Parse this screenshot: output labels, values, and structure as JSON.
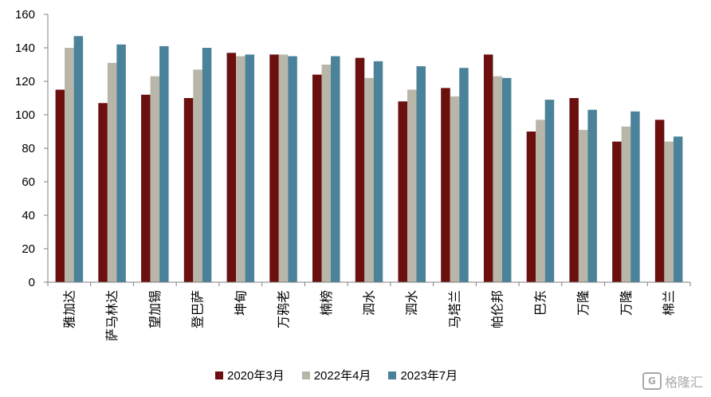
{
  "chart_data": {
    "type": "bar",
    "categories": [
      "雅加达",
      "萨马林达",
      "望加锡",
      "登巴萨",
      "坤甸",
      "万鸦老",
      "楠榜",
      "泗水",
      "泗水",
      "马塔兰",
      "帕伦邦",
      "巴东",
      "万隆",
      "万隆",
      "棉兰"
    ],
    "series": [
      {
        "name": "2020年3月",
        "color": "#6b0f0f",
        "values": [
          115,
          107,
          112,
          110,
          137,
          136,
          124,
          134,
          108,
          116,
          136,
          90,
          110,
          84,
          97
        ]
      },
      {
        "name": "2022年4月",
        "color": "#b8b6a8",
        "values": [
          140,
          131,
          123,
          127,
          135,
          136,
          130,
          122,
          115,
          111,
          123,
          97,
          91,
          93,
          84
        ]
      },
      {
        "name": "2023年7月",
        "color": "#4a8299",
        "values": [
          147,
          142,
          141,
          140,
          136,
          135,
          135,
          132,
          129,
          128,
          122,
          109,
          103,
          102,
          87
        ]
      }
    ],
    "yticks": [
      "0",
      "20",
      "40",
      "60",
      "80",
      "100",
      "120",
      "140",
      "160"
    ],
    "ylim": [
      0,
      160
    ],
    "legend_position": "bottom",
    "grid": false
  },
  "watermark": {
    "text": "格隆汇",
    "logo": "G"
  }
}
